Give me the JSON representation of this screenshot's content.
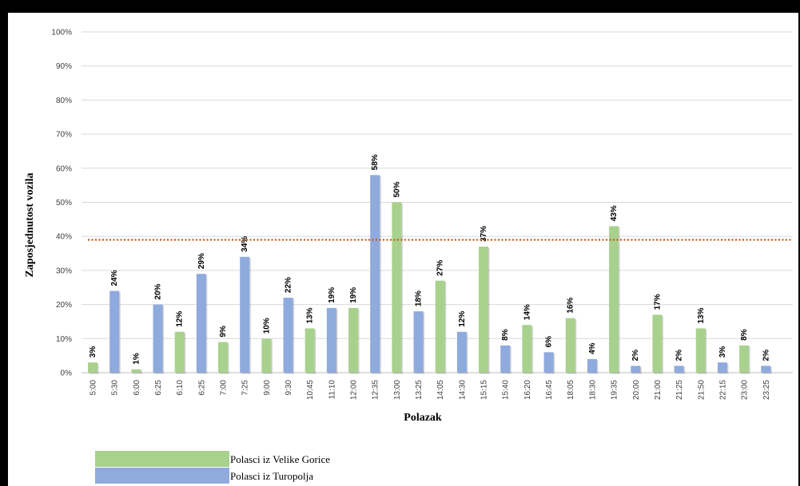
{
  "chart_data": {
    "type": "bar",
    "title": "",
    "xlabel": "Polazak",
    "ylabel": "Zaposjednutost vozila",
    "ylim": [
      0,
      100
    ],
    "yticks": [
      "0%",
      "10%",
      "20%",
      "30%",
      "40%",
      "50%",
      "60%",
      "70%",
      "80%",
      "90%",
      "100%"
    ],
    "grid": true,
    "legend_position": "bottom-left",
    "reference_line": {
      "value": 39,
      "color": "#C55A11",
      "style": "dotted"
    },
    "series": [
      {
        "name": "Polasci iz Velike Gorice",
        "color": "#A9D18E"
      },
      {
        "name": "Polasci iz Turopolja",
        "color": "#8FAADC"
      }
    ],
    "categories": [
      "5:00",
      "5:30",
      "6:00",
      "6:25",
      "6:10",
      "6:25",
      "7:00",
      "7:25",
      "9:00",
      "9:30",
      "10:45",
      "11:10",
      "12:00",
      "12:35",
      "13:00",
      "13:25",
      "14:05",
      "14:30",
      "15:15",
      "15:40",
      "16:20",
      "16:45",
      "18:05",
      "18:30",
      "19:35",
      "20:00",
      "21:00",
      "21:25",
      "21:50",
      "22:15",
      "23:00",
      "23:25"
    ],
    "values": [
      3,
      24,
      1,
      20,
      12,
      29,
      9,
      34,
      10,
      22,
      13,
      19,
      19,
      58,
      50,
      18,
      27,
      12,
      37,
      8,
      14,
      6,
      16,
      4,
      43,
      2,
      17,
      2,
      13,
      3,
      8,
      2
    ],
    "value_labels": [
      "3%",
      "24%",
      "1%",
      "20%",
      "12%",
      "29%",
      "9%",
      "34%",
      "10%",
      "22%",
      "13%",
      "19%",
      "19%",
      "58%",
      "50%",
      "18%",
      "27%",
      "12%",
      "37%",
      "8%",
      "14%",
      "6%",
      "16%",
      "4%",
      "43%",
      "2%",
      "17%",
      "2%",
      "13%",
      "3%",
      "8%",
      "2%"
    ],
    "bar_series": [
      0,
      1,
      0,
      1,
      0,
      1,
      0,
      1,
      0,
      1,
      0,
      1,
      0,
      1,
      0,
      1,
      0,
      1,
      0,
      1,
      0,
      1,
      0,
      1,
      0,
      1,
      0,
      1,
      0,
      1,
      0,
      1
    ]
  }
}
